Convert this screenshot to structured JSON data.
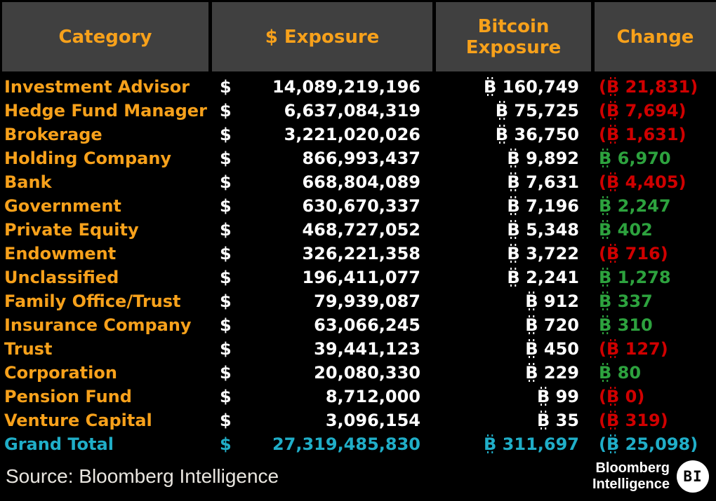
{
  "table": {
    "header": {
      "category": "Category",
      "usd": "$ Exposure",
      "btc_line1": "Bitcoin",
      "btc_line2": "Exposure",
      "change": "Change"
    },
    "symbols": {
      "usd": "$",
      "btc_letter": "B",
      "btc_unicode": "₿"
    },
    "rows": [
      {
        "category": "Investment Advisor",
        "usd": "14,089,219,196",
        "btc": "160,749",
        "change": {
          "value": "21,831",
          "negative": true
        }
      },
      {
        "category": "Hedge Fund Manager",
        "usd": "6,637,084,319",
        "btc": "75,725",
        "change": {
          "value": "7,694",
          "negative": true
        }
      },
      {
        "category": "Brokerage",
        "usd": "3,221,020,026",
        "btc": "36,750",
        "change": {
          "value": "1,631",
          "negative": true
        }
      },
      {
        "category": "Holding Company",
        "usd": "866,993,437",
        "btc": "9,892",
        "change": {
          "value": "6,970",
          "negative": false
        }
      },
      {
        "category": "Bank",
        "usd": "668,804,089",
        "btc": "7,631",
        "change": {
          "value": "4,405",
          "negative": true
        }
      },
      {
        "category": "Government",
        "usd": "630,670,337",
        "btc": "7,196",
        "change": {
          "value": "2,247",
          "negative": false
        }
      },
      {
        "category": "Private Equity",
        "usd": "468,727,052",
        "btc": "5,348",
        "change": {
          "value": "402",
          "negative": false
        }
      },
      {
        "category": "Endowment",
        "usd": "326,221,358",
        "btc": "3,722",
        "change": {
          "value": "716",
          "negative": true
        }
      },
      {
        "category": "Unclassified",
        "usd": "196,411,077",
        "btc": "2,241",
        "change": {
          "value": "1,278",
          "negative": false
        }
      },
      {
        "category": "Family Office/Trust",
        "usd": "79,939,087",
        "btc": "912",
        "change": {
          "value": "337",
          "negative": false
        }
      },
      {
        "category": "Insurance Company",
        "usd": "63,066,245",
        "btc": "720",
        "change": {
          "value": "310",
          "negative": false
        }
      },
      {
        "category": "Trust",
        "usd": "39,441,123",
        "btc": "450",
        "change": {
          "value": "127",
          "negative": true
        }
      },
      {
        "category": "Corporation",
        "usd": "20,080,330",
        "btc": "229",
        "change": {
          "value": "80",
          "negative": false
        }
      },
      {
        "category": "Pension Fund",
        "usd": "8,712,000",
        "btc": "99",
        "change": {
          "value": "0",
          "negative": true
        }
      },
      {
        "category": "Venture Capital",
        "usd": "3,096,154",
        "btc": "35",
        "change": {
          "value": "319",
          "negative": true
        }
      }
    ],
    "grand_total": {
      "category": "Grand Total",
      "usd": "27,319,485,830",
      "btc": "311,697",
      "change": {
        "value": "25,098",
        "negative": true
      }
    }
  },
  "chart_data": {
    "type": "table",
    "columns": [
      "Category",
      "$ Exposure",
      "Bitcoin Exposure",
      "Change"
    ],
    "rows": [
      [
        "Investment Advisor",
        14089219196,
        160749,
        -21831
      ],
      [
        "Hedge Fund Manager",
        6637084319,
        75725,
        -7694
      ],
      [
        "Brokerage",
        3221020026,
        36750,
        -1631
      ],
      [
        "Holding Company",
        866993437,
        9892,
        6970
      ],
      [
        "Bank",
        668804089,
        7631,
        -4405
      ],
      [
        "Government",
        630670337,
        7196,
        2247
      ],
      [
        "Private Equity",
        468727052,
        5348,
        402
      ],
      [
        "Endowment",
        326221358,
        3722,
        -716
      ],
      [
        "Unclassified",
        196411077,
        2241,
        1278
      ],
      [
        "Family Office/Trust",
        79939087,
        912,
        337
      ],
      [
        "Insurance Company",
        63066245,
        720,
        310
      ],
      [
        "Trust",
        39441123,
        450,
        -127
      ],
      [
        "Corporation",
        20080330,
        229,
        80
      ],
      [
        "Pension Fund",
        8712000,
        99,
        0
      ],
      [
        "Venture Capital",
        3096154,
        35,
        -319
      ]
    ],
    "grand_total": [
      "Grand Total",
      27319485830,
      311697,
      -25098
    ],
    "source": "Source: Bloomberg Intelligence",
    "notes": "Negative changes shown in parentheses in red; positive in green; totals in cyan."
  },
  "footer": {
    "source": "Source: Bloomberg Intelligence",
    "brand_line1": "Bloomberg",
    "brand_line2": "Intelligence",
    "badge": "BI"
  },
  "colors": {
    "orange": "#f7a11b",
    "red": "#d00000",
    "green": "#2da23e",
    "cyan": "#20aec8",
    "header_bg": "#404040",
    "background": "#000000",
    "value_white": "#ffffff",
    "source_text": "#e9e6e0"
  }
}
